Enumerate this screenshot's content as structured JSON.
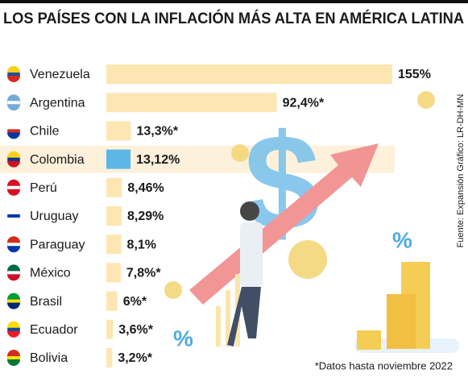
{
  "chart_data": {
    "type": "bar",
    "title": "LOS PAÍSES CON LA INFLACIÓN MÁS ALTA EN AMÉRICA LATINA",
    "categories": [
      "Venezuela",
      "Argentina",
      "Chile",
      "Colombia",
      "Perú",
      "Uruguay",
      "Paraguay",
      "México",
      "Brasil",
      "Ecuador",
      "Bolivia"
    ],
    "values": [
      155,
      92.4,
      13.3,
      13.12,
      8.46,
      8.29,
      8.1,
      7.8,
      6,
      3.6,
      3.2
    ],
    "value_labels": [
      "155%",
      "92,4%*",
      "13,3%*",
      "13,12%",
      "8,46%",
      "8,29%",
      "8,1%",
      "7,8%*",
      "6%*",
      "3,6%*",
      "3,2%*"
    ],
    "colors": [
      "#fde6b2",
      "#fde6b2",
      "#fde6b2",
      "#5cb6e6",
      "#fde6b2",
      "#fde6b2",
      "#fde6b2",
      "#fde6b2",
      "#fde6b2",
      "#fde6b2",
      "#fde6b2"
    ],
    "note": "*Datos hasta noviembre 2022",
    "source": "Fuente: Expansión   Gráfico: LR-DH-MN"
  }
}
